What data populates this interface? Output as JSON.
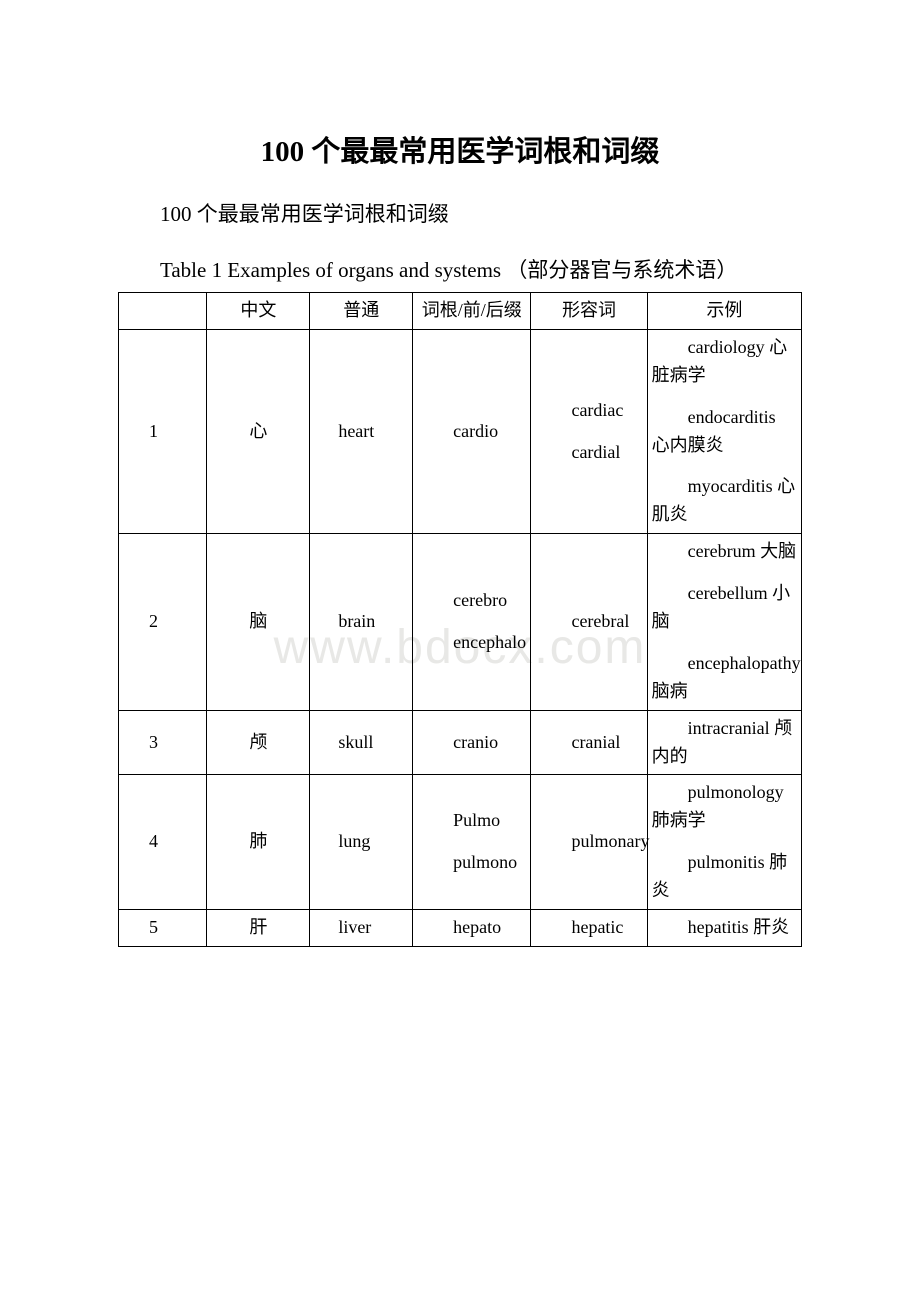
{
  "title": "100 个最最常用医学词根和词缀",
  "subtitle": "100 个最最常用医学词根和词缀",
  "table_caption": "Table 1 Examples of organs and systems （部分器官与系统术语）",
  "watermark": "www.bdocx.com",
  "headers": {
    "num": "",
    "cn": "中文",
    "common": "普通",
    "root": "词根/前/后缀",
    "adj": "形容词",
    "example": "示例"
  },
  "rows": [
    {
      "num": "1",
      "cn": "心",
      "common": "heart",
      "root": [
        "cardio"
      ],
      "adj": [
        "cardiac",
        "cardial"
      ],
      "examples": [
        "cardiology 心脏病学",
        "endocarditis 心内膜炎",
        "myocarditis 心肌炎"
      ]
    },
    {
      "num": "2",
      "cn": "脑",
      "common": "brain",
      "root": [
        "cerebro",
        "encephalo"
      ],
      "adj": [
        "cerebral"
      ],
      "examples": [
        "cerebrum 大脑",
        "cerebellum 小脑",
        "encephalopathy 脑病"
      ]
    },
    {
      "num": "3",
      "cn": "颅",
      "common": "skull",
      "root": [
        "cranio"
      ],
      "adj": [
        "cranial"
      ],
      "examples": [
        "intracranial 颅内的"
      ]
    },
    {
      "num": "4",
      "cn": "肺",
      "common": "lung",
      "root": [
        "Pulmo",
        "pulmono"
      ],
      "adj": [
        "pulmonary"
      ],
      "examples": [
        "pulmonology 肺病学",
        "pulmonitis 肺炎"
      ]
    },
    {
      "num": "5",
      "cn": "肝",
      "common": "liver",
      "root": [
        "hepato"
      ],
      "adj": [
        "hepatic"
      ],
      "examples": [
        "hepatitis 肝炎"
      ]
    }
  ]
}
